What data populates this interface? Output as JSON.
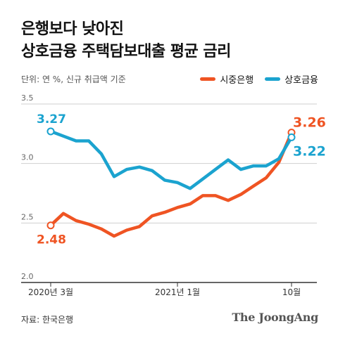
{
  "title_lines": [
    "은행보다 낮아진",
    "상호금융 주택담보대출 평균 금리"
  ],
  "unit_note": "단위: 연 %, 신규 취급액 기준",
  "source": "자료: 한국은행",
  "brand": "The JoongAng",
  "colors": {
    "bank": "#ef5423",
    "mutual": "#1ba3cf",
    "grid": "#cfcfcf",
    "axis": "#333333",
    "tick_text": "#666666"
  },
  "chart_data": {
    "type": "line",
    "title": "",
    "xlabel": "",
    "ylabel": "",
    "ylim": [
      2.0,
      3.5
    ],
    "yticks": [
      2.0,
      2.5,
      3.0,
      3.5
    ],
    "ytick_labels": [
      "2.0",
      "2.5",
      "3.0",
      "3.5"
    ],
    "grid": true,
    "legend_position": "top-right",
    "x_range": [
      0,
      20
    ],
    "xtick_labels": [
      {
        "x": 0,
        "label": "2020년 3월"
      },
      {
        "x": 10,
        "label": "2021년 1월"
      },
      {
        "x": 19,
        "label": "10월"
      }
    ],
    "series": [
      {
        "name": "시중은행",
        "color": "#ef5423",
        "x": [
          0,
          1,
          2,
          3,
          4,
          5,
          6,
          7,
          8,
          9,
          10,
          11,
          12,
          13,
          14,
          15,
          16,
          17,
          18,
          19
        ],
        "values": [
          2.48,
          2.58,
          2.52,
          2.49,
          2.45,
          2.39,
          2.44,
          2.47,
          2.56,
          2.59,
          2.63,
          2.66,
          2.73,
          2.73,
          2.69,
          2.74,
          2.81,
          2.88,
          3.01,
          3.26
        ],
        "start_label": "2.48",
        "end_label": "3.26"
      },
      {
        "name": "상호금융",
        "color": "#1ba3cf",
        "x": [
          0,
          1,
          2,
          3,
          4,
          5,
          6,
          7,
          8,
          9,
          10,
          11,
          12,
          13,
          14,
          15,
          16,
          17,
          18,
          19
        ],
        "values": [
          3.27,
          3.23,
          3.19,
          3.19,
          3.08,
          2.89,
          2.95,
          2.97,
          2.94,
          2.86,
          2.84,
          2.79,
          2.87,
          2.95,
          3.03,
          2.95,
          2.98,
          2.98,
          3.04,
          3.22
        ],
        "start_label": "3.27",
        "end_label": "3.22"
      }
    ]
  }
}
